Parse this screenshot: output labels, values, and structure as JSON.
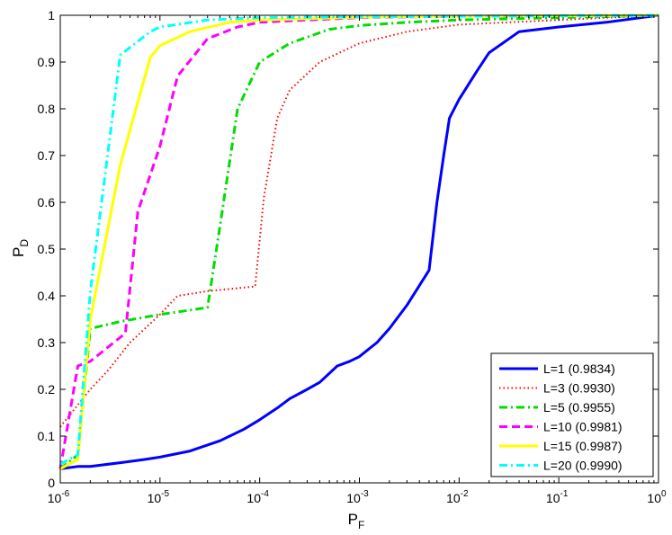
{
  "chart_data": {
    "type": "line",
    "title": "",
    "xlabel": "P",
    "xlabel_sub": "F",
    "ylabel": "P",
    "ylabel_sub": "D",
    "xscale": "log",
    "xlim": [
      1e-06,
      1
    ],
    "ylim": [
      0,
      1
    ],
    "grid": false,
    "legend_position": "bottom-right",
    "x_ticks": [
      {
        "value": 1e-06,
        "base": "10",
        "exp": "-6"
      },
      {
        "value": 1e-05,
        "base": "10",
        "exp": "-5"
      },
      {
        "value": 0.0001,
        "base": "10",
        "exp": "-4"
      },
      {
        "value": 0.001,
        "base": "10",
        "exp": "-3"
      },
      {
        "value": 0.01,
        "base": "10",
        "exp": "-2"
      },
      {
        "value": 0.1,
        "base": "10",
        "exp": "-1"
      },
      {
        "value": 1,
        "base": "10",
        "exp": "0"
      }
    ],
    "y_ticks": [
      {
        "value": 0,
        "label": "0"
      },
      {
        "value": 0.1,
        "label": "0.1"
      },
      {
        "value": 0.2,
        "label": "0.2"
      },
      {
        "value": 0.3,
        "label": "0.3"
      },
      {
        "value": 0.4,
        "label": "0.4"
      },
      {
        "value": 0.5,
        "label": "0.5"
      },
      {
        "value": 0.6,
        "label": "0.6"
      },
      {
        "value": 0.7,
        "label": "0.7"
      },
      {
        "value": 0.8,
        "label": "0.8"
      },
      {
        "value": 0.9,
        "label": "0.9"
      },
      {
        "value": 1,
        "label": "1"
      }
    ],
    "series": [
      {
        "name": "L=1 (0.9834)",
        "color": "#0000ff",
        "dash": "solid",
        "points": [
          [
            1e-06,
            0.03
          ],
          [
            1.5e-06,
            0.035
          ],
          [
            2e-06,
            0.035
          ],
          [
            4e-06,
            0.043
          ],
          [
            7e-06,
            0.05
          ],
          [
            1e-05,
            0.055
          ],
          [
            2e-05,
            0.068
          ],
          [
            4e-05,
            0.09
          ],
          [
            7e-05,
            0.115
          ],
          [
            0.0001,
            0.135
          ],
          [
            0.00015,
            0.16
          ],
          [
            0.0002,
            0.18
          ],
          [
            0.0003,
            0.2
          ],
          [
            0.0004,
            0.215
          ],
          [
            0.0006,
            0.25
          ],
          [
            0.0008,
            0.26
          ],
          [
            0.001,
            0.27
          ],
          [
            0.0015,
            0.3
          ],
          [
            0.002,
            0.33
          ],
          [
            0.003,
            0.38
          ],
          [
            0.005,
            0.455
          ],
          [
            0.006,
            0.6
          ],
          [
            0.007,
            0.7
          ],
          [
            0.008,
            0.78
          ],
          [
            0.01,
            0.82
          ],
          [
            0.015,
            0.88
          ],
          [
            0.02,
            0.92
          ],
          [
            0.04,
            0.965
          ],
          [
            0.1,
            0.975
          ],
          [
            0.3,
            0.985
          ],
          [
            1,
            1
          ]
        ]
      },
      {
        "name": "L=3 (0.9930)",
        "color": "#ff0000",
        "dash": "dotted",
        "points": [
          [
            1e-06,
            0.12
          ],
          [
            2e-06,
            0.2
          ],
          [
            3e-06,
            0.24
          ],
          [
            5e-06,
            0.3
          ],
          [
            1e-05,
            0.36
          ],
          [
            1.5e-05,
            0.4
          ],
          [
            3e-05,
            0.41
          ],
          [
            9e-05,
            0.42
          ],
          [
            0.00011,
            0.61
          ],
          [
            0.00015,
            0.78
          ],
          [
            0.0002,
            0.84
          ],
          [
            0.0004,
            0.9
          ],
          [
            0.001,
            0.94
          ],
          [
            0.003,
            0.965
          ],
          [
            0.01,
            0.98
          ],
          [
            0.1,
            0.99
          ],
          [
            1,
            1
          ]
        ]
      },
      {
        "name": "L=5 (0.9955)",
        "color": "#00dd00",
        "dash": "dashdot",
        "points": [
          [
            1e-06,
            0.03
          ],
          [
            1.5e-06,
            0.06
          ],
          [
            2e-06,
            0.33
          ],
          [
            4e-06,
            0.345
          ],
          [
            1e-05,
            0.36
          ],
          [
            3e-05,
            0.375
          ],
          [
            4e-05,
            0.55
          ],
          [
            6e-05,
            0.8
          ],
          [
            0.0001,
            0.9
          ],
          [
            0.0002,
            0.94
          ],
          [
            0.0005,
            0.97
          ],
          [
            0.001,
            0.978
          ],
          [
            0.003,
            0.985
          ],
          [
            0.01,
            0.99
          ],
          [
            0.1,
            0.995
          ],
          [
            1,
            1
          ]
        ]
      },
      {
        "name": "L=10 (0.9981)",
        "color": "#ff00ff",
        "dash": "dashed",
        "points": [
          [
            1e-06,
            0.03
          ],
          [
            1.5e-06,
            0.25
          ],
          [
            2e-06,
            0.26
          ],
          [
            4.5e-06,
            0.32
          ],
          [
            6e-06,
            0.58
          ],
          [
            1e-05,
            0.72
          ],
          [
            1.5e-05,
            0.87
          ],
          [
            3e-05,
            0.95
          ],
          [
            6e-05,
            0.975
          ],
          [
            0.0001,
            0.985
          ],
          [
            0.0003,
            0.99
          ],
          [
            0.001,
            0.995
          ],
          [
            0.01,
            0.998
          ],
          [
            1,
            1
          ]
        ]
      },
      {
        "name": "L=15 (0.9987)",
        "color": "#ffff00",
        "dash": "solid",
        "points": [
          [
            1e-06,
            0.03
          ],
          [
            1.5e-06,
            0.05
          ],
          [
            2e-06,
            0.35
          ],
          [
            4e-06,
            0.68
          ],
          [
            8e-06,
            0.91
          ],
          [
            1e-05,
            0.935
          ],
          [
            2e-05,
            0.965
          ],
          [
            5e-05,
            0.985
          ],
          [
            0.0001,
            0.99
          ],
          [
            0.001,
            0.996
          ],
          [
            0.01,
            0.998
          ],
          [
            1,
            1
          ]
        ]
      },
      {
        "name": "L=20 (0.9990)",
        "color": "#00ffff",
        "dash": "dashdot",
        "points": [
          [
            1e-06,
            0.04
          ],
          [
            1.5e-06,
            0.06
          ],
          [
            2e-06,
            0.41
          ],
          [
            4e-06,
            0.915
          ],
          [
            8e-06,
            0.965
          ],
          [
            1e-05,
            0.975
          ],
          [
            3e-05,
            0.99
          ],
          [
            0.0001,
            0.995
          ],
          [
            0.001,
            0.997
          ],
          [
            0.1,
            0.999
          ],
          [
            1,
            1
          ]
        ]
      }
    ]
  }
}
